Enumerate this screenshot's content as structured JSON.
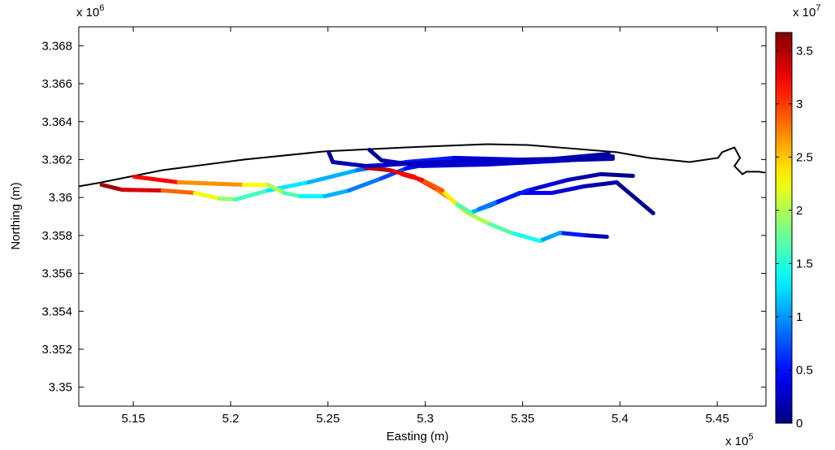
{
  "chart_data": {
    "type": "colored-track",
    "xlabel": "Easting (m)",
    "ylabel": "Northing (m)",
    "x_multiplier": {
      "base": "x 10",
      "exponent": "5"
    },
    "y_multiplier": {
      "base": "x 10",
      "exponent": "6"
    },
    "xlim": [
      5.122,
      5.475
    ],
    "ylim": [
      3.349,
      3.369
    ],
    "xticks": [
      5.15,
      5.2,
      5.25,
      5.3,
      5.35,
      5.4,
      5.45
    ],
    "yticks": [
      3.35,
      3.352,
      3.354,
      3.356,
      3.358,
      3.36,
      3.362,
      3.364,
      3.366,
      3.368
    ],
    "grid": false,
    "colormap": "jet",
    "colorbar": {
      "clim": [
        0,
        3.67
      ],
      "ticks": [
        0,
        0.5,
        1,
        1.5,
        2,
        2.5,
        3,
        3.5
      ],
      "multiplier": {
        "base": "x 10",
        "exponent": "7"
      }
    },
    "coastline": {
      "color": "#000000",
      "x": [
        5.1221,
        5.1317,
        5.165,
        5.2067,
        5.2483,
        5.29,
        5.3317,
        5.3525,
        5.3733,
        5.3983,
        5.415,
        5.4358,
        5.4504,
        5.4525,
        5.4588,
        5.4617,
        5.4588,
        5.4629,
        5.465,
        5.4713,
        5.4746
      ],
      "y": [
        3.36059,
        3.36076,
        3.36144,
        3.362,
        3.36243,
        3.36264,
        3.36281,
        3.36277,
        3.3626,
        3.36239,
        3.36209,
        3.36187,
        3.36209,
        3.36239,
        3.36264,
        3.36209,
        3.36166,
        3.36123,
        3.36136,
        3.36136,
        3.36131
      ]
    },
    "series": [
      {
        "x": [
          5.1337,
          5.1442,
          5.165,
          5.1817,
          5.1942,
          5.2025,
          5.2192,
          5.24,
          5.265,
          5.29,
          5.315,
          5.3483,
          5.3963
        ],
        "y": [
          3.36067,
          3.36041,
          3.36037,
          3.36024,
          3.35994,
          3.3599,
          3.36037,
          3.3608,
          3.36144,
          3.36187,
          3.36209,
          3.362,
          3.36209
        ],
        "c": [
          3.6,
          3.5,
          3.2,
          2.5,
          2.0,
          1.8,
          1.4,
          1.2,
          1.0,
          0.7,
          0.4,
          0.2,
          0.1
        ]
      },
      {
        "x": [
          5.1504,
          5.1733,
          5.2067,
          5.2192,
          5.2275,
          5.2358,
          5.2483,
          5.2608,
          5.2775,
          5.29,
          5.3067,
          5.34,
          5.3963
        ],
        "y": [
          3.3611,
          3.3608,
          3.36067,
          3.36067,
          3.36024,
          3.36007,
          3.36007,
          3.36037,
          3.36101,
          3.36153,
          3.36187,
          3.36187,
          3.36204
        ],
        "c": [
          3.4,
          3.0,
          2.4,
          2.2,
          1.8,
          1.5,
          1.2,
          1.0,
          0.8,
          0.6,
          0.4,
          0.2,
          0.05
        ]
      },
      {
        "x": [
          5.3933,
          5.3817,
          5.3692,
          5.3588,
          5.3442,
          5.3317,
          5.3213,
          5.3129,
          5.3046,
          5.2942,
          5.2817,
          5.2692
        ],
        "y": [
          3.35793,
          3.35801,
          3.35814,
          3.35771,
          3.35814,
          3.35866,
          3.35921,
          3.35994,
          3.3605,
          3.3611,
          3.36144,
          3.36157
        ],
        "c": [
          0.1,
          0.3,
          0.8,
          1.3,
          1.6,
          1.8,
          2.2,
          2.6,
          2.9,
          3.2,
          3.4,
          3.5
        ]
      },
      {
        "x": [
          5.4171,
          5.3983,
          5.3817,
          5.365,
          5.3483,
          5.3317,
          5.3233,
          5.315,
          5.3088,
          5.2983,
          5.2879
        ],
        "y": [
          3.35917,
          3.3608,
          3.36059,
          3.36024,
          3.36024,
          3.35951,
          3.35921,
          3.35973,
          3.36037,
          3.36093,
          3.36123
        ],
        "c": [
          0.05,
          0.1,
          0.2,
          0.4,
          0.5,
          0.9,
          1.3,
          2.0,
          2.7,
          3.1,
          3.3
        ]
      },
      {
        "x": [
          5.4067,
          5.39,
          5.3733,
          5.3525,
          5.3358,
          5.3275
        ],
        "y": [
          3.36114,
          3.36123,
          3.36093,
          3.36037,
          3.35973,
          3.35939
        ],
        "c": [
          0.05,
          0.1,
          0.2,
          0.4,
          0.7,
          1.1
        ]
      },
      {
        "x": [
          5.2504,
          5.2525,
          5.2692,
          5.3067,
          5.3483,
          5.3942
        ],
        "y": [
          3.36239,
          3.36187,
          3.36166,
          3.36187,
          3.36187,
          3.3623
        ],
        "c": [
          0.05,
          0.1,
          0.2,
          0.3,
          0.2,
          0.1
        ]
      },
      {
        "x": [
          5.2713,
          5.2775,
          5.2983,
          5.3317,
          5.3733,
          5.3963
        ],
        "y": [
          3.36251,
          3.36196,
          3.36166,
          3.36174,
          3.36196,
          3.36217
        ],
        "c": [
          0.05,
          0.1,
          0.3,
          0.3,
          0.2,
          0.1
        ]
      }
    ]
  }
}
